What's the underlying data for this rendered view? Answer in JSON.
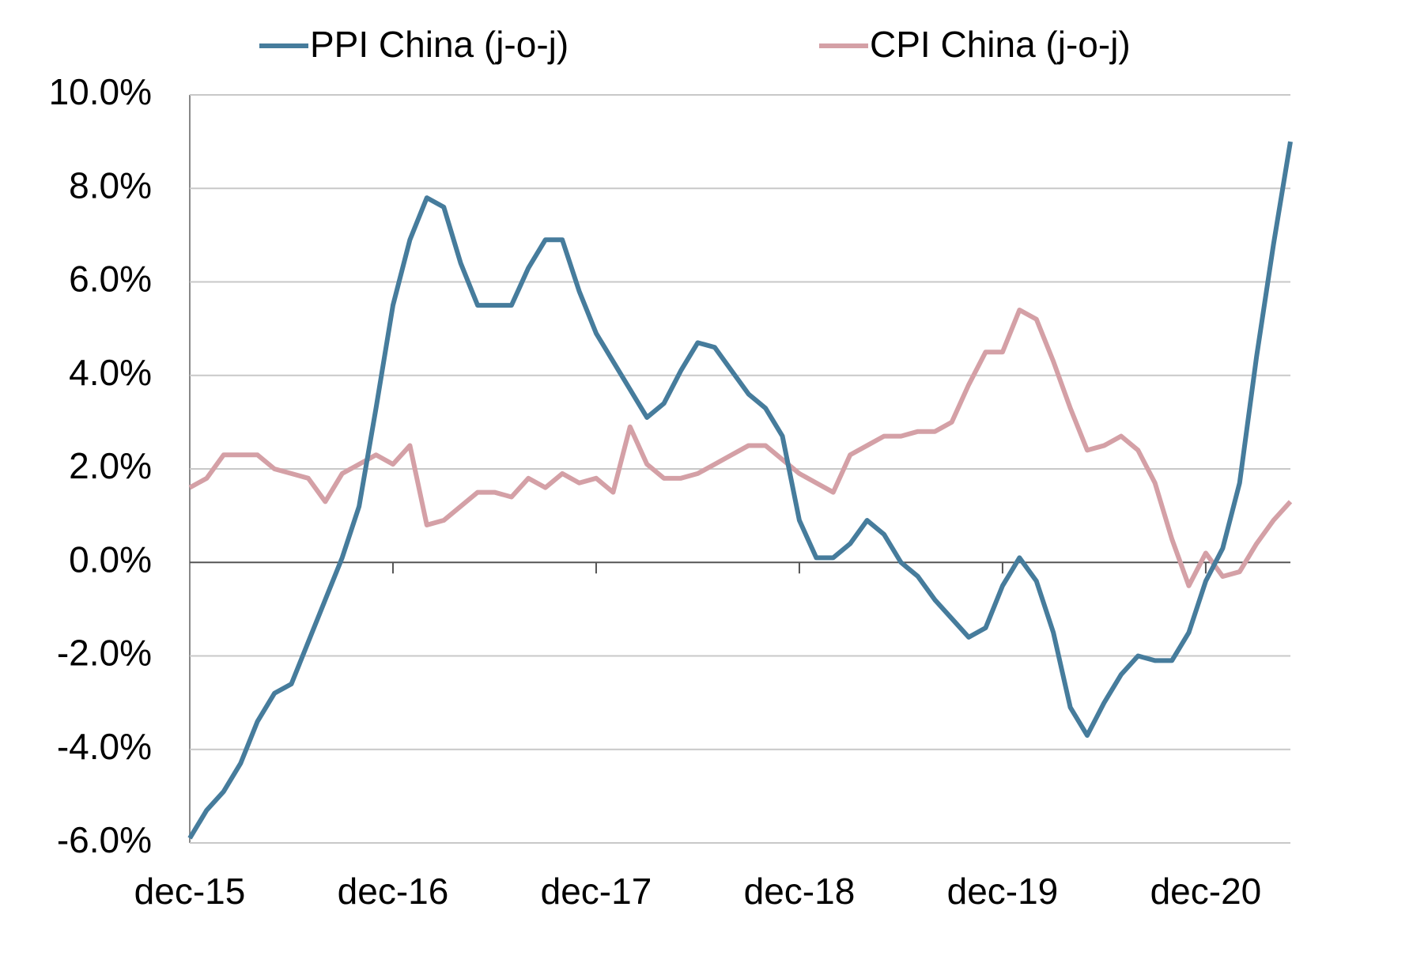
{
  "chart_data": {
    "type": "line",
    "categories": [
      "dec-15",
      null,
      null,
      null,
      null,
      null,
      null,
      null,
      null,
      null,
      null,
      null,
      "dec-16",
      null,
      null,
      null,
      null,
      null,
      null,
      null,
      null,
      null,
      null,
      null,
      "dec-17",
      null,
      null,
      null,
      null,
      null,
      null,
      null,
      null,
      null,
      null,
      null,
      "dec-18",
      null,
      null,
      null,
      null,
      null,
      null,
      null,
      null,
      null,
      null,
      null,
      "dec-19",
      null,
      null,
      null,
      null,
      null,
      null,
      null,
      null,
      null,
      null,
      null,
      "dec-20",
      null,
      null,
      null,
      null,
      null
    ],
    "series": [
      {
        "name": "PPI China (j-o-j)",
        "color": "#467c9c",
        "values": [
          -5.9,
          -5.3,
          -4.9,
          -4.3,
          -3.4,
          -2.8,
          -2.6,
          -1.7,
          -0.8,
          0.1,
          1.2,
          3.3,
          5.5,
          6.9,
          7.8,
          7.6,
          6.4,
          5.5,
          5.5,
          5.5,
          6.3,
          6.9,
          6.9,
          5.8,
          4.9,
          4.3,
          3.7,
          3.1,
          3.4,
          4.1,
          4.7,
          4.6,
          4.1,
          3.6,
          3.3,
          2.7,
          0.9,
          0.1,
          0.1,
          0.4,
          0.9,
          0.6,
          0.0,
          -0.3,
          -0.8,
          -1.2,
          -1.6,
          -1.4,
          -0.5,
          0.1,
          -0.4,
          -1.5,
          -3.1,
          -3.7,
          -3.0,
          -2.4,
          -2.0,
          -2.1,
          -2.1,
          -1.5,
          -0.4,
          0.3,
          1.7,
          4.4,
          6.8,
          9.0
        ]
      },
      {
        "name": "CPI China (j-o-j)",
        "color": "#d4a0a6",
        "values": [
          1.6,
          1.8,
          2.3,
          2.3,
          2.3,
          2.0,
          1.9,
          1.8,
          1.3,
          1.9,
          2.1,
          2.3,
          2.1,
          2.5,
          0.8,
          0.9,
          1.2,
          1.5,
          1.5,
          1.4,
          1.8,
          1.6,
          1.9,
          1.7,
          1.8,
          1.5,
          2.9,
          2.1,
          1.8,
          1.8,
          1.9,
          2.1,
          2.3,
          2.5,
          2.5,
          2.2,
          1.9,
          1.7,
          1.5,
          2.3,
          2.5,
          2.7,
          2.7,
          2.8,
          2.8,
          3.0,
          3.8,
          4.5,
          4.5,
          5.4,
          5.2,
          4.3,
          3.3,
          2.4,
          2.5,
          2.7,
          2.4,
          1.7,
          0.5,
          -0.5,
          0.2,
          -0.3,
          -0.2,
          0.4,
          0.9,
          1.3
        ]
      }
    ],
    "ylim": [
      -6,
      10
    ],
    "yticks": [
      {
        "value": -6,
        "label": "-6.0%"
      },
      {
        "value": -4,
        "label": "-4.0%"
      },
      {
        "value": -2,
        "label": "-2.0%"
      },
      {
        "value": 0,
        "label": "0.0%"
      },
      {
        "value": 2,
        "label": "2.0%"
      },
      {
        "value": 4,
        "label": "4.0%"
      },
      {
        "value": 6,
        "label": "6.0%"
      },
      {
        "value": 8,
        "label": "8.0%"
      },
      {
        "value": 10,
        "label": "10.0%"
      }
    ],
    "grid": true
  }
}
